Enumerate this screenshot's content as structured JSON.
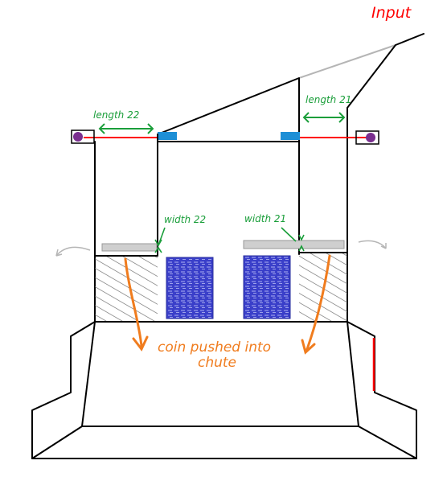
{
  "labels": {
    "input": "Input",
    "length_2": "length 22",
    "length_1": "length 21",
    "width_2": "width 22",
    "width_1": "width 21",
    "coin_note_line1": "coin pushed into",
    "coin_note_line2": "chute"
  },
  "colors": {
    "ink": "#000000",
    "input_red": "#ff0000",
    "rail_red": "#ff0000",
    "green": "#1a9e3a",
    "orange": "#f07c1e",
    "blue_block": "#3a3fc9",
    "sensor_blue": "#1d8fd6",
    "purple_motor": "#7a2e8f",
    "gray": "#b5b5b5"
  },
  "icons": [
    "motor-left-icon",
    "motor-right-icon",
    "sensor-left-icon",
    "sensor-right-icon"
  ]
}
